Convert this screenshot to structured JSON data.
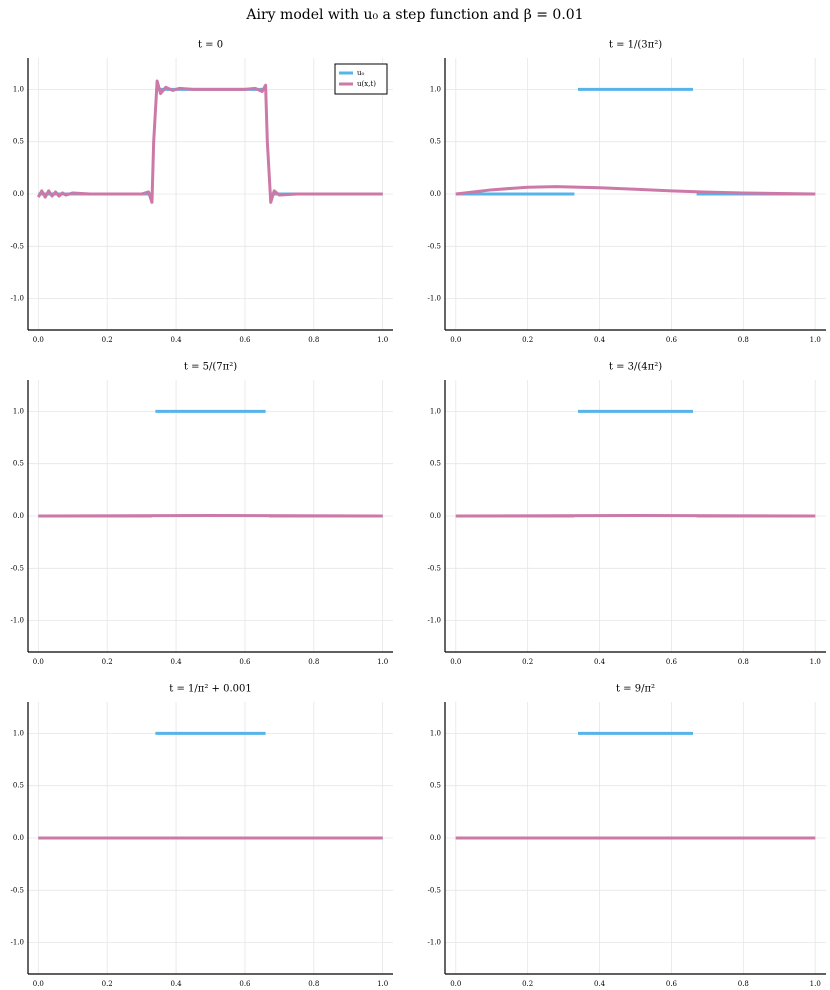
{
  "title": "Airy model with u₀ a step function and β =  0.01",
  "chart_data": [
    {
      "type": "line",
      "title": "t = 0",
      "legend": "top-right",
      "xlim": [
        -0.03,
        1.03
      ],
      "ylim": [
        -1.3,
        1.3
      ],
      "xticks": [
        {
          "value": 0,
          "label": "0.0"
        },
        0.2,
        0.4,
        0.6,
        0.8,
        {
          "value": 1,
          "label": "1.0"
        }
      ],
      "yticks": [
        {
          "value": -1,
          "label": "-1.0"
        },
        -0.5,
        {
          "value": 0,
          "label": "0.0"
        },
        0.5,
        {
          "value": 1,
          "label": "1.0"
        }
      ],
      "grid": true,
      "series": [
        {
          "name": "u₀",
          "color": "#56b4e9",
          "x": [
            0,
            0.33,
            0.335,
            0.34,
            0.66,
            0.665,
            0.67,
            1
          ],
          "values": [
            0,
            0,
            null,
            1,
            1,
            null,
            0,
            0
          ]
        },
        {
          "name": "u(x,t)",
          "color": "#cc79a7",
          "x": [
            0,
            0.01,
            0.02,
            0.03,
            0.04,
            0.05,
            0.06,
            0.07,
            0.08,
            0.1,
            0.15,
            0.2,
            0.25,
            0.3,
            0.32,
            0.33,
            0.335,
            0.345,
            0.355,
            0.37,
            0.39,
            0.41,
            0.45,
            0.5,
            0.55,
            0.6,
            0.63,
            0.65,
            0.66,
            0.665,
            0.675,
            0.685,
            0.7,
            0.75,
            0.8,
            0.9,
            1
          ],
          "values": [
            -0.03,
            0.03,
            -0.03,
            0.03,
            -0.02,
            0.02,
            -0.02,
            0.01,
            -0.01,
            0.01,
            0,
            0,
            0,
            0,
            0.02,
            -0.08,
            0.5,
            1.08,
            0.96,
            1.02,
            0.99,
            1.01,
            1,
            1,
            1,
            1,
            1.01,
            0.98,
            1.04,
            0.5,
            -0.08,
            0.03,
            -0.01,
            0,
            0,
            0,
            0
          ]
        }
      ]
    },
    {
      "type": "line",
      "title": "t = 1/(3π²)",
      "xlim": [
        -0.03,
        1.03
      ],
      "ylim": [
        -1.3,
        1.3
      ],
      "xticks": [
        {
          "value": 0,
          "label": "0.0"
        },
        0.2,
        0.4,
        0.6,
        0.8,
        {
          "value": 1,
          "label": "1.0"
        }
      ],
      "yticks": [
        {
          "value": -1,
          "label": "-1.0"
        },
        -0.5,
        {
          "value": 0,
          "label": "0.0"
        },
        0.5,
        {
          "value": 1,
          "label": "1.0"
        }
      ],
      "grid": true,
      "series": [
        {
          "color": "#56b4e9",
          "x": [
            0,
            0.33,
            0.335,
            0.34,
            0.66,
            0.665,
            0.67,
            1
          ],
          "values": [
            0,
            0,
            null,
            1,
            1,
            null,
            0,
            0
          ]
        },
        {
          "color": "#cc79a7",
          "x": [
            0,
            0.1,
            0.2,
            0.28,
            0.4,
            0.5,
            0.6,
            0.7,
            0.8,
            0.9,
            1
          ],
          "values": [
            0,
            0.04,
            0.065,
            0.07,
            0.06,
            0.045,
            0.03,
            0.018,
            0.01,
            0.005,
            0
          ]
        }
      ]
    },
    {
      "type": "line",
      "title": "t = 5/(7π²)",
      "xlim": [
        -0.03,
        1.03
      ],
      "ylim": [
        -1.3,
        1.3
      ],
      "xticks": [
        {
          "value": 0,
          "label": "0.0"
        },
        0.2,
        0.4,
        0.6,
        0.8,
        {
          "value": 1,
          "label": "1.0"
        }
      ],
      "yticks": [
        {
          "value": -1,
          "label": "-1.0"
        },
        -0.5,
        {
          "value": 0,
          "label": "0.0"
        },
        0.5,
        {
          "value": 1,
          "label": "1.0"
        }
      ],
      "grid": true,
      "series": [
        {
          "color": "#56b4e9",
          "x": [
            0,
            0.33,
            0.335,
            0.34,
            0.66,
            0.665,
            0.67,
            1
          ],
          "values": [
            0,
            0,
            null,
            1,
            1,
            null,
            0,
            0
          ]
        },
        {
          "color": "#cc79a7",
          "x": [
            0,
            0.5,
            1
          ],
          "values": [
            0,
            0.005,
            0
          ]
        }
      ]
    },
    {
      "type": "line",
      "title": "t = 3/(4π²)",
      "xlim": [
        -0.03,
        1.03
      ],
      "ylim": [
        -1.3,
        1.3
      ],
      "xticks": [
        {
          "value": 0,
          "label": "0.0"
        },
        0.2,
        0.4,
        0.6,
        0.8,
        {
          "value": 1,
          "label": "1.0"
        }
      ],
      "yticks": [
        {
          "value": -1,
          "label": "-1.0"
        },
        -0.5,
        {
          "value": 0,
          "label": "0.0"
        },
        0.5,
        {
          "value": 1,
          "label": "1.0"
        }
      ],
      "grid": true,
      "series": [
        {
          "color": "#56b4e9",
          "x": [
            0,
            0.33,
            0.335,
            0.34,
            0.66,
            0.665,
            0.67,
            1
          ],
          "values": [
            0,
            0,
            null,
            1,
            1,
            null,
            0,
            0
          ]
        },
        {
          "color": "#cc79a7",
          "x": [
            0,
            0.5,
            1
          ],
          "values": [
            0,
            0.005,
            0
          ]
        }
      ]
    },
    {
      "type": "line",
      "title": "t = 1/π² + 0.001",
      "xlim": [
        -0.03,
        1.03
      ],
      "ylim": [
        -1.3,
        1.3
      ],
      "xticks": [
        {
          "value": 0,
          "label": "0.0"
        },
        0.2,
        0.4,
        0.6,
        0.8,
        {
          "value": 1,
          "label": "1.0"
        }
      ],
      "yticks": [
        {
          "value": -1,
          "label": "-1.0"
        },
        -0.5,
        {
          "value": 0,
          "label": "0.0"
        },
        0.5,
        {
          "value": 1,
          "label": "1.0"
        }
      ],
      "grid": true,
      "series": [
        {
          "color": "#56b4e9",
          "x": [
            0,
            0.33,
            0.335,
            0.34,
            0.66,
            0.665,
            0.67,
            1
          ],
          "values": [
            0,
            0,
            null,
            1,
            1,
            null,
            0,
            0
          ]
        },
        {
          "color": "#cc79a7",
          "x": [
            0,
            0.5,
            1
          ],
          "values": [
            0,
            0,
            0
          ]
        }
      ]
    },
    {
      "type": "line",
      "title": "t = 9/π²",
      "xlim": [
        -0.03,
        1.03
      ],
      "ylim": [
        -1.3,
        1.3
      ],
      "xticks": [
        {
          "value": 0,
          "label": "0.0"
        },
        0.2,
        0.4,
        0.6,
        0.8,
        {
          "value": 1,
          "label": "1.0"
        }
      ],
      "yticks": [
        {
          "value": -1,
          "label": "-1.0"
        },
        -0.5,
        {
          "value": 0,
          "label": "0.0"
        },
        0.5,
        {
          "value": 1,
          "label": "1.0"
        }
      ],
      "grid": true,
      "series": [
        {
          "color": "#56b4e9",
          "x": [
            0,
            0.33,
            0.335,
            0.34,
            0.66,
            0.665,
            0.67,
            1
          ],
          "values": [
            0,
            0,
            null,
            1,
            1,
            null,
            0,
            0
          ]
        },
        {
          "color": "#cc79a7",
          "x": [
            0,
            0.5,
            1
          ],
          "values": [
            0,
            0,
            0
          ]
        }
      ]
    }
  ]
}
